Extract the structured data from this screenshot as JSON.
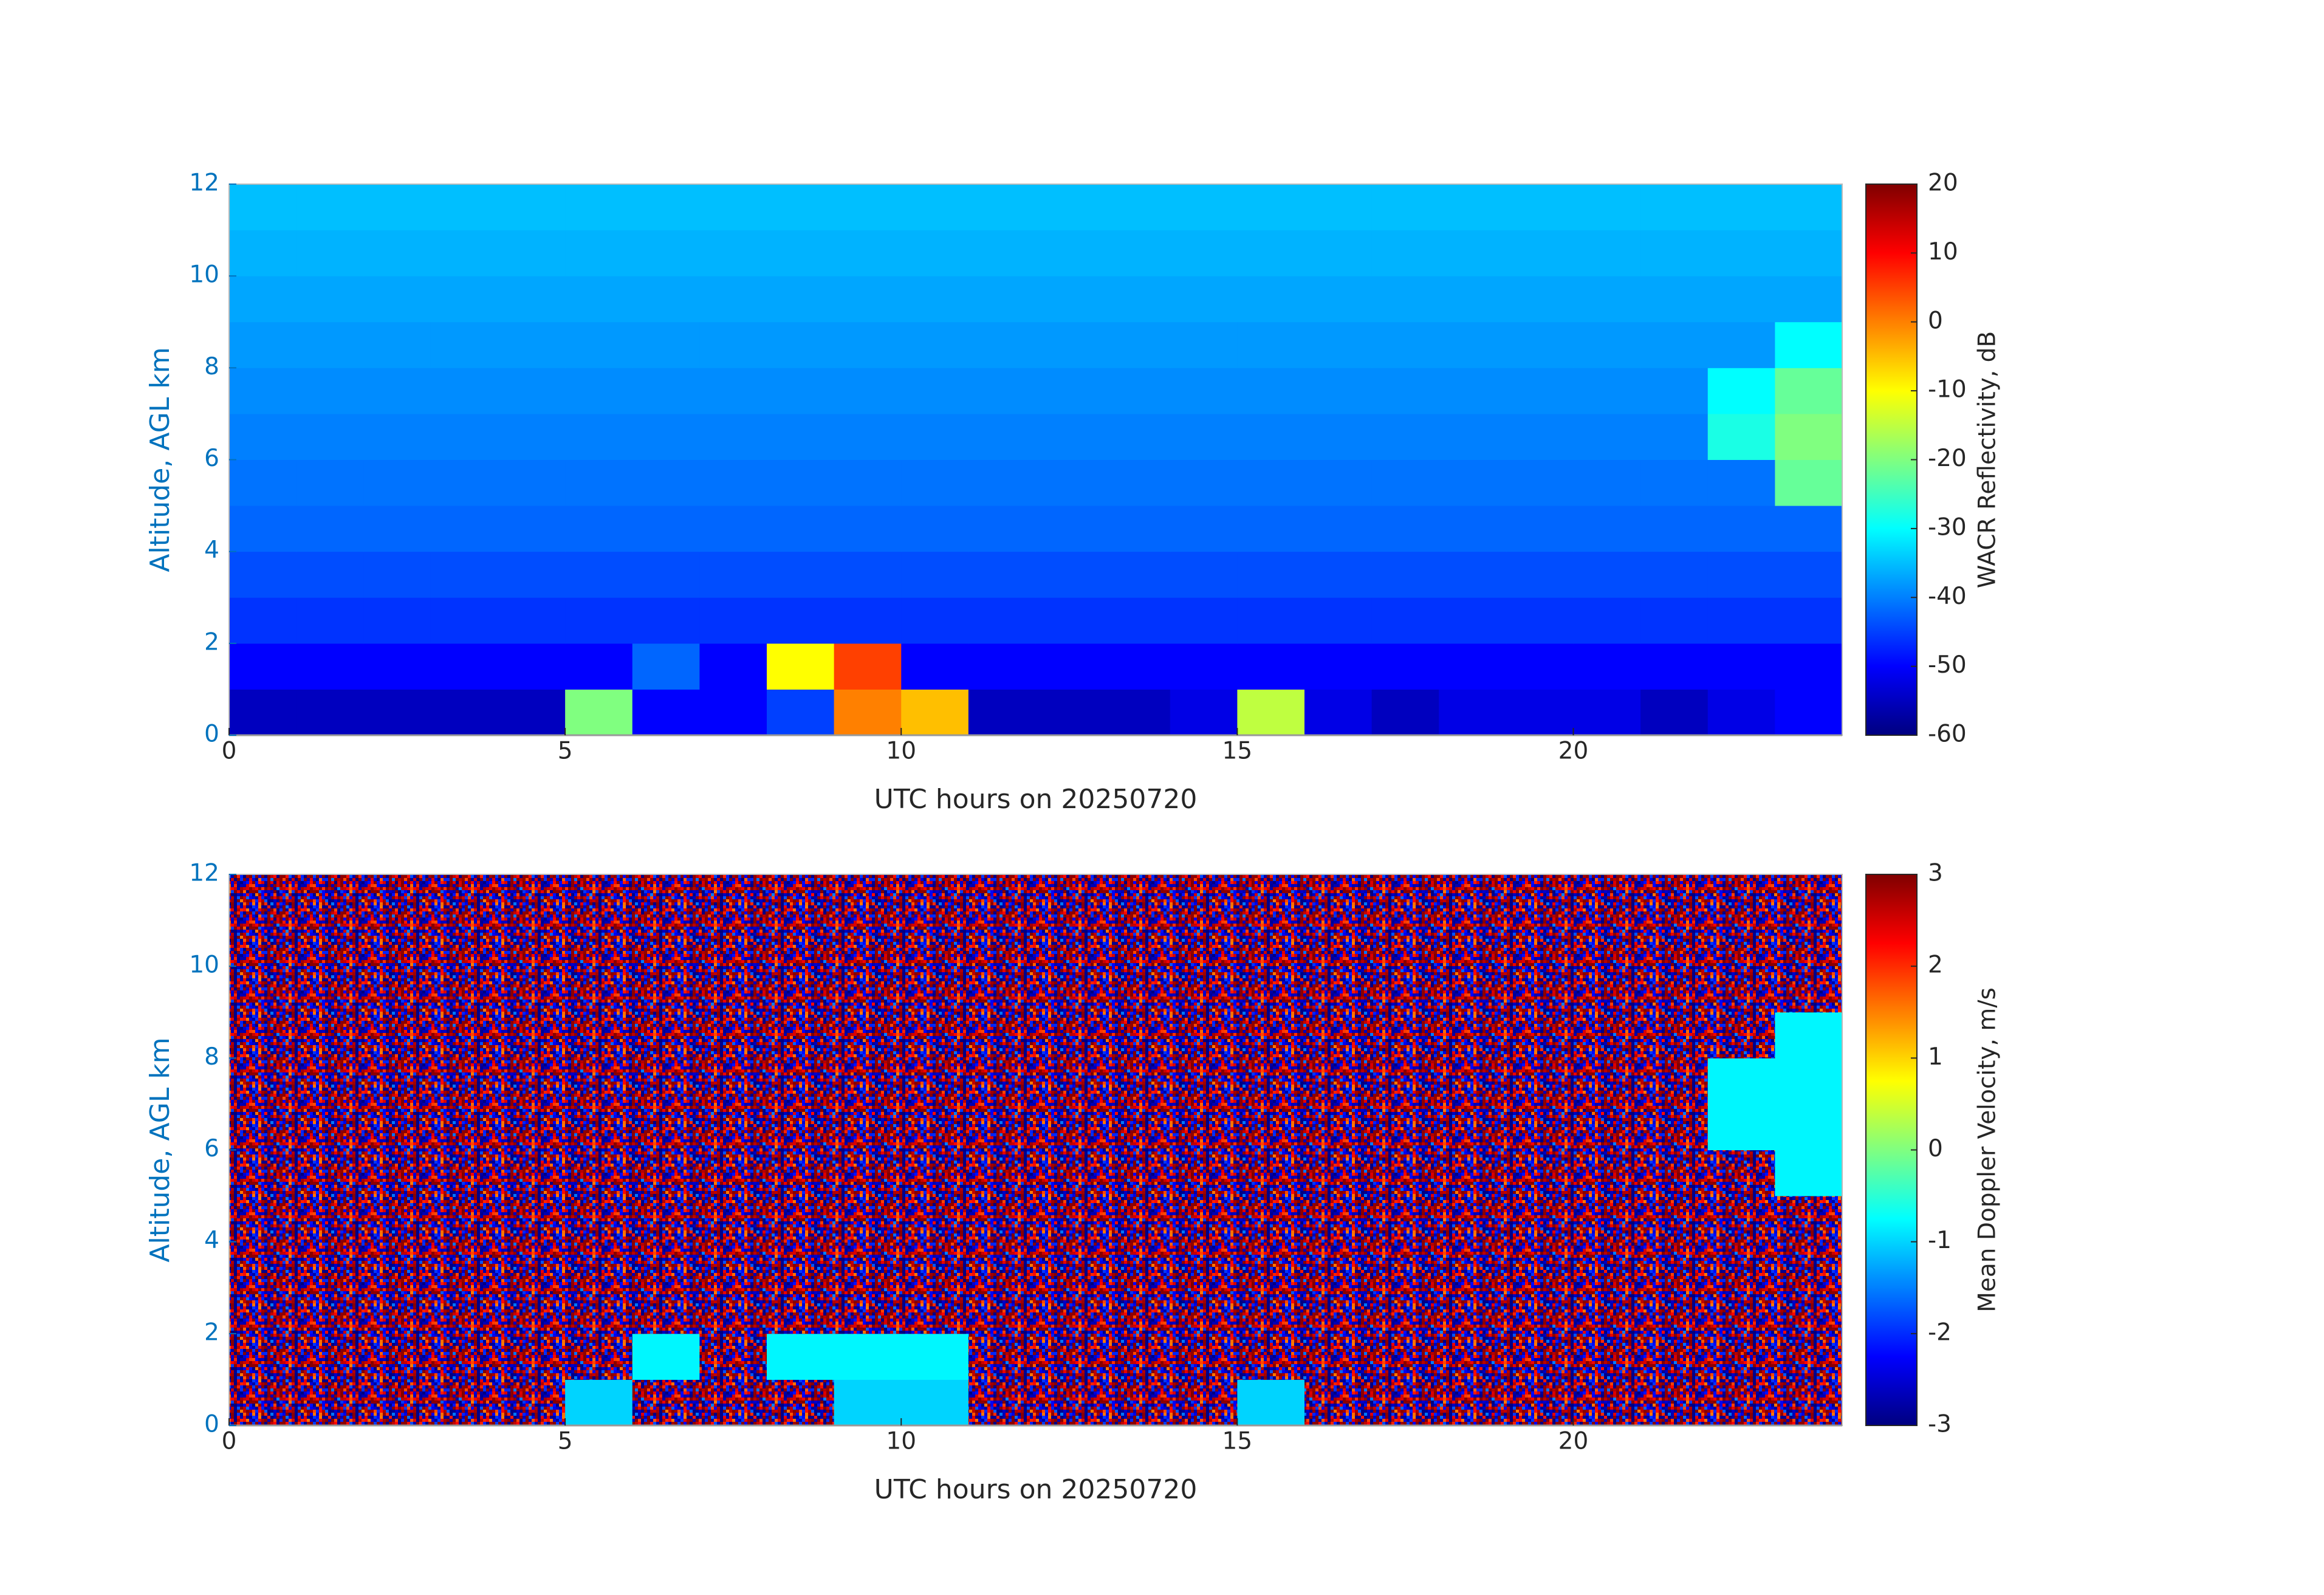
{
  "chart_data": [
    {
      "type": "heatmap",
      "xlabel": "UTC hours on 20250720",
      "ylabel": "Altitude, AGL km",
      "colorbar_label": "WACR Reflectivity, dB",
      "xlim": [
        0,
        24
      ],
      "xticks": [
        0,
        5,
        10,
        15,
        20
      ],
      "ylim": [
        0,
        12
      ],
      "yticks": [
        0,
        2,
        4,
        6,
        8,
        10,
        12
      ],
      "zlim": [
        -60,
        20
      ],
      "zticks": [
        -60,
        -50,
        -40,
        -30,
        -20,
        -10,
        0,
        10,
        20
      ],
      "colormap": "jet",
      "x": [
        0,
        1,
        2,
        3,
        4,
        5,
        6,
        7,
        8,
        9,
        10,
        11,
        12,
        13,
        14,
        15,
        16,
        17,
        18,
        19,
        20,
        21,
        22,
        23,
        24
      ],
      "y": [
        0,
        1,
        2,
        3,
        4,
        5,
        6,
        7,
        8,
        9,
        10,
        11,
        12
      ],
      "z": [
        [
          -55,
          -55,
          -55,
          -55,
          -55,
          -20,
          -50,
          -50,
          -45,
          0,
          -5,
          -55,
          -55,
          -55,
          -52,
          -15,
          -52,
          -55,
          -52,
          -52,
          -52,
          -55,
          -52,
          -50
        ],
        [
          -50,
          -50,
          -50,
          -50,
          -50,
          -50,
          -42,
          -50,
          -10,
          5,
          -50,
          -50,
          -50,
          -50,
          -50,
          -50,
          -50,
          -50,
          -50,
          -50,
          -50,
          -50,
          -50,
          -50
        ],
        [
          -46,
          -46,
          -46,
          -46,
          -46,
          -46,
          -46,
          -46,
          -46,
          -46,
          -46,
          -46,
          -46,
          -46,
          -46,
          -46,
          -46,
          -46,
          -46,
          -46,
          -46,
          -46,
          -46,
          -46
        ],
        [
          -44,
          -44,
          -44,
          -44,
          -44,
          -44,
          -44,
          -44,
          -44,
          -44,
          -44,
          -44,
          -44,
          -44,
          -44,
          -44,
          -44,
          -44,
          -44,
          -44,
          -44,
          -44,
          -44,
          -44
        ],
        [
          -42,
          -42,
          -42,
          -42,
          -42,
          -42,
          -42,
          -42,
          -42,
          -42,
          -42,
          -42,
          -42,
          -42,
          -42,
          -42,
          -42,
          -42,
          -42,
          -42,
          -42,
          -42,
          -42,
          -42
        ],
        [
          -41,
          -41,
          -41,
          -41,
          -41,
          -41,
          -41,
          -41,
          -41,
          -41,
          -41,
          -41,
          -41,
          -41,
          -41,
          -41,
          -41,
          -41,
          -41,
          -41,
          -41,
          -41,
          -41,
          -22
        ],
        [
          -40,
          -40,
          -40,
          -40,
          -40,
          -40,
          -40,
          -40,
          -40,
          -40,
          -40,
          -40,
          -40,
          -40,
          -40,
          -40,
          -40,
          -40,
          -40,
          -40,
          -40,
          -40,
          -28,
          -20
        ],
        [
          -39,
          -39,
          -39,
          -39,
          -39,
          -39,
          -39,
          -39,
          -39,
          -39,
          -39,
          -39,
          -39,
          -39,
          -39,
          -39,
          -39,
          -39,
          -39,
          -39,
          -39,
          -39,
          -30,
          -22
        ],
        [
          -38,
          -38,
          -38,
          -38,
          -38,
          -38,
          -38,
          -38,
          -38,
          -38,
          -38,
          -38,
          -38,
          -38,
          -38,
          -38,
          -38,
          -38,
          -38,
          -38,
          -38,
          -38,
          -38,
          -30
        ],
        [
          -37,
          -37,
          -37,
          -37,
          -37,
          -37,
          -37,
          -37,
          -37,
          -37,
          -37,
          -37,
          -37,
          -37,
          -37,
          -37,
          -37,
          -37,
          -37,
          -37,
          -37,
          -37,
          -37,
          -37
        ],
        [
          -36,
          -36,
          -36,
          -36,
          -36,
          -36,
          -36,
          -36,
          -36,
          -36,
          -36,
          -36,
          -36,
          -36,
          -36,
          -36,
          -36,
          -36,
          -36,
          -36,
          -36,
          -36,
          -36,
          -36
        ],
        [
          -35,
          -35,
          -35,
          -35,
          -35,
          -35,
          -35,
          -35,
          -35,
          -35,
          -35,
          -35,
          -35,
          -35,
          -35,
          -35,
          -35,
          -35,
          -35,
          -35,
          -35,
          -35,
          -35,
          -35
        ]
      ]
    },
    {
      "type": "heatmap",
      "xlabel": "UTC hours on 20250720",
      "ylabel": "Altitude, AGL km",
      "colorbar_label": "Mean Doppler Velocity, m/s",
      "xlim": [
        0,
        24
      ],
      "xticks": [
        0,
        5,
        10,
        15,
        20
      ],
      "ylim": [
        0,
        12
      ],
      "yticks": [
        0,
        2,
        4,
        6,
        8,
        10,
        12
      ],
      "zlim": [
        -3,
        3
      ],
      "zticks": [
        -3,
        -2,
        -1,
        0,
        1,
        2,
        3
      ],
      "colormap": "jet",
      "x": [
        0,
        1,
        2,
        3,
        4,
        5,
        6,
        7,
        8,
        9,
        10,
        11,
        12,
        13,
        14,
        15,
        16,
        17,
        18,
        19,
        20,
        21,
        22,
        23,
        24
      ],
      "y": [
        0,
        1,
        2,
        3,
        4,
        5,
        6,
        7,
        8,
        9,
        10,
        11,
        12
      ],
      "z": [
        [
          null,
          null,
          null,
          null,
          null,
          -1,
          null,
          null,
          null,
          -1,
          -1,
          null,
          null,
          null,
          null,
          -1,
          null,
          null,
          null,
          null,
          null,
          null,
          null,
          null
        ],
        [
          null,
          null,
          null,
          null,
          null,
          null,
          -0.8,
          null,
          -0.8,
          -0.8,
          -0.8,
          null,
          null,
          null,
          null,
          null,
          null,
          null,
          null,
          null,
          null,
          null,
          null,
          null
        ],
        [
          null,
          null,
          null,
          null,
          null,
          null,
          null,
          null,
          null,
          null,
          null,
          null,
          null,
          null,
          null,
          null,
          null,
          null,
          null,
          null,
          null,
          null,
          null,
          null
        ],
        [
          null,
          null,
          null,
          null,
          null,
          null,
          null,
          null,
          null,
          null,
          null,
          null,
          null,
          null,
          null,
          null,
          null,
          null,
          null,
          null,
          null,
          null,
          null,
          null
        ],
        [
          null,
          null,
          null,
          null,
          null,
          null,
          null,
          null,
          null,
          null,
          null,
          null,
          null,
          null,
          null,
          null,
          null,
          null,
          null,
          null,
          null,
          null,
          null,
          null
        ],
        [
          null,
          null,
          null,
          null,
          null,
          null,
          null,
          null,
          null,
          null,
          null,
          null,
          null,
          null,
          null,
          null,
          null,
          null,
          null,
          null,
          null,
          null,
          null,
          -0.8
        ],
        [
          null,
          null,
          null,
          null,
          null,
          null,
          null,
          null,
          null,
          null,
          null,
          null,
          null,
          null,
          null,
          null,
          null,
          null,
          null,
          null,
          null,
          null,
          -0.8,
          -0.8
        ],
        [
          null,
          null,
          null,
          null,
          null,
          null,
          null,
          null,
          null,
          null,
          null,
          null,
          null,
          null,
          null,
          null,
          null,
          null,
          null,
          null,
          null,
          null,
          -0.8,
          -0.8
        ],
        [
          null,
          null,
          null,
          null,
          null,
          null,
          null,
          null,
          null,
          null,
          null,
          null,
          null,
          null,
          null,
          null,
          null,
          null,
          null,
          null,
          null,
          null,
          null,
          -0.8
        ],
        [
          null,
          null,
          null,
          null,
          null,
          null,
          null,
          null,
          null,
          null,
          null,
          null,
          null,
          null,
          null,
          null,
          null,
          null,
          null,
          null,
          null,
          null,
          null,
          null
        ],
        [
          null,
          null,
          null,
          null,
          null,
          null,
          null,
          null,
          null,
          null,
          null,
          null,
          null,
          null,
          null,
          null,
          null,
          null,
          null,
          null,
          null,
          null,
          null,
          null
        ],
        [
          null,
          null,
          null,
          null,
          null,
          null,
          null,
          null,
          null,
          null,
          null,
          null,
          null,
          null,
          null,
          null,
          null,
          null,
          null,
          null,
          null,
          null,
          null,
          null
        ]
      ]
    }
  ]
}
